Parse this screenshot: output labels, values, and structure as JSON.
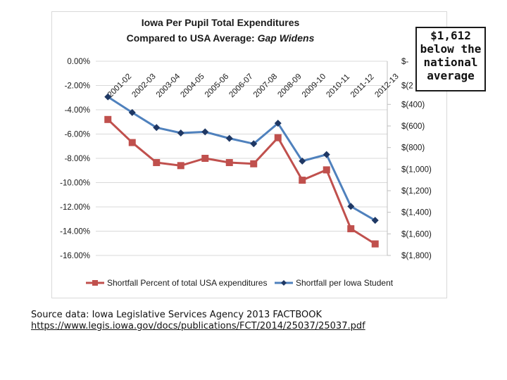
{
  "chart_data": {
    "type": "line",
    "title_line1": "Iowa Per Pupil Total Expenditures",
    "title_line2_prefix": "Compared to USA Average:",
    "title_line2_italic": "Gap Widens",
    "categories": [
      "2001-02",
      "2002-03",
      "2003-04",
      "2004-05",
      "2005-06",
      "2006-07",
      "2007-08",
      "2008-09",
      "2009-10",
      "2010-11",
      "2011-12",
      "2012-13"
    ],
    "left_axis": {
      "ylim": [
        -16,
        0
      ],
      "ticks": [
        0,
        -2,
        -4,
        -6,
        -8,
        -10,
        -12,
        -14,
        -16
      ],
      "tick_labels": [
        "0.00%",
        "-2.00%",
        "-4.00%",
        "-6.00%",
        "-8.00%",
        "-10.00%",
        "-12.00%",
        "-14.00%",
        "-16.00%"
      ]
    },
    "right_axis": {
      "ylim": [
        -1800,
        0
      ],
      "ticks": [
        -400,
        -600,
        -800,
        -1000,
        -1200,
        -1400,
        -1600,
        -1800
      ],
      "tick_labels": [
        "$(400)",
        "$(600)",
        "$(800)",
        "$(1,000)",
        "$(1,200)",
        "$(1,400)",
        "$(1,600)",
        "$(1,800)"
      ],
      "partial_labels": [
        "$-",
        "$(2"
      ]
    },
    "series": [
      {
        "name": "Shortfall Percent of total USA expenditures",
        "axis": "left",
        "color": "#c0504d",
        "marker": "square",
        "values": [
          -4.8,
          -6.7,
          -8.35,
          -8.6,
          -8.0,
          -8.35,
          -8.45,
          -6.3,
          -9.8,
          -8.95,
          -13.8,
          -15.05
        ]
      },
      {
        "name": "Shortfall per Iowa Student",
        "axis": "right",
        "color": "#4f81bd",
        "marker_color": "#1f3864",
        "marker": "diamond",
        "values": [
          -330,
          -475,
          -615,
          -665,
          -655,
          -715,
          -765,
          -575,
          -925,
          -865,
          -1345,
          -1475
        ]
      }
    ]
  },
  "callout": {
    "lines": [
      "$1,612",
      "below the",
      "national",
      "average"
    ]
  },
  "source": {
    "text": "Source data:  Iowa Legislative Services Agency 2013 FACTBOOK",
    "link": "https://www.legis.iowa.gov/docs/publications/FCT/2014/25037/25037.pdf"
  }
}
